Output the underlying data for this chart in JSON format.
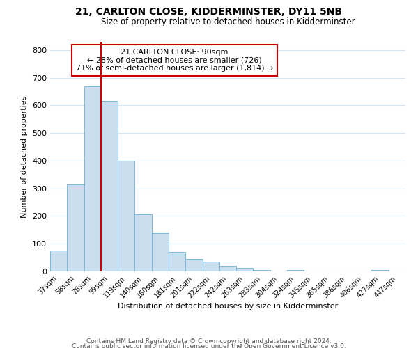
{
  "title": "21, CARLTON CLOSE, KIDDERMINSTER, DY11 5NB",
  "subtitle": "Size of property relative to detached houses in Kidderminster",
  "xlabel": "Distribution of detached houses by size in Kidderminster",
  "ylabel": "Number of detached properties",
  "categories": [
    "37sqm",
    "58sqm",
    "78sqm",
    "99sqm",
    "119sqm",
    "140sqm",
    "160sqm",
    "181sqm",
    "201sqm",
    "222sqm",
    "242sqm",
    "263sqm",
    "283sqm",
    "304sqm",
    "324sqm",
    "345sqm",
    "365sqm",
    "386sqm",
    "406sqm",
    "427sqm",
    "447sqm"
  ],
  "values": [
    75,
    315,
    668,
    615,
    400,
    205,
    138,
    70,
    46,
    35,
    20,
    12,
    5,
    0,
    6,
    0,
    0,
    0,
    0,
    6,
    0
  ],
  "bar_color": "#c9dff0",
  "bar_edge_color": "#7ab8d9",
  "vline_color": "#cc0000",
  "annotation_title": "21 CARLTON CLOSE: 90sqm",
  "annotation_line1": "← 28% of detached houses are smaller (726)",
  "annotation_line2": "71% of semi-detached houses are larger (1,814) →",
  "annotation_box_color": "#ffffff",
  "annotation_box_edge": "#cc0000",
  "ylim": [
    0,
    830
  ],
  "yticks": [
    0,
    100,
    200,
    300,
    400,
    500,
    600,
    700,
    800
  ],
  "footer1": "Contains HM Land Registry data © Crown copyright and database right 2024.",
  "footer2": "Contains public sector information licensed under the Open Government Licence v3.0.",
  "bg_color": "#ffffff",
  "plot_bg_color": "#ffffff",
  "grid_color": "#d8e4f0"
}
